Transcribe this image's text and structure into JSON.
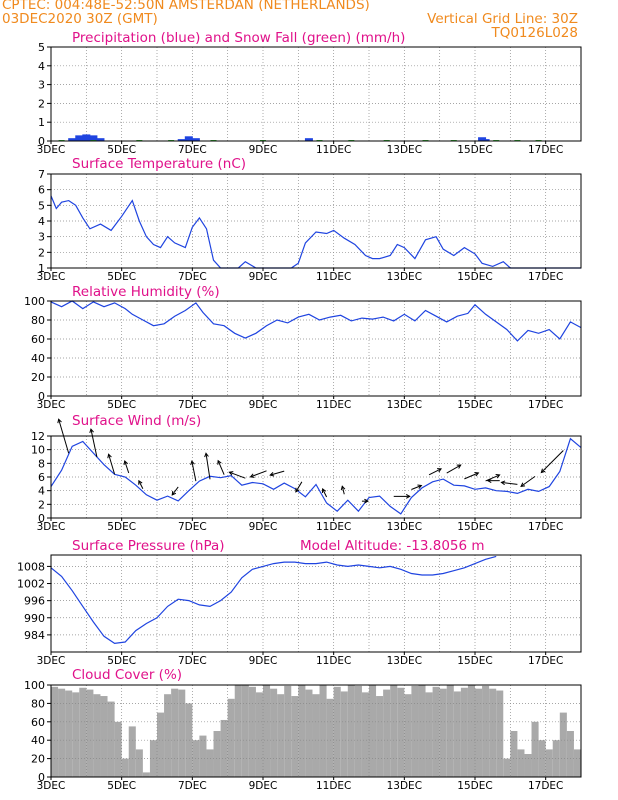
{
  "header": {
    "line1": "CPTEC:   004:48E-52:50N   AMSTERDAN (NETHERLANDS)",
    "line2": "03DEC2020 30Z (GMT)",
    "grid_note": "Vertical Grid Line: 30Z",
    "code": "TQ0126L028"
  },
  "colors": {
    "header": "#f08a1e",
    "title": "#e0118a",
    "line": "#1f44e0",
    "precip": "#1f44e0",
    "snow": "#22aa22",
    "cloud": "#a9a9a9",
    "grid": "#888888"
  },
  "chart_data": [
    {
      "id": "precip",
      "type": "bar",
      "title": "Precipitation (blue) and Snow Fall (green) (mm/h)",
      "ylim": [
        0,
        5
      ],
      "yticks": [
        0,
        1,
        2,
        3,
        4,
        5
      ],
      "xticks": [
        "3DEC",
        "5DEC",
        "7DEC",
        "9DEC",
        "11DEC",
        "13DEC",
        "15DEC",
        "17DEC"
      ],
      "x": [
        0.6,
        0.8,
        1.0,
        1.2,
        1.4,
        3.7,
        3.9,
        4.1,
        7.3,
        12.2,
        12.3
      ],
      "values": [
        0.15,
        0.3,
        0.35,
        0.3,
        0.15,
        0.1,
        0.25,
        0.15,
        0.15,
        0.2,
        0.1
      ],
      "snow_x": [
        0.3,
        1.2,
        2.5,
        3.4,
        4.6,
        6.0,
        7.6,
        8.5,
        9.5,
        10.6,
        11.4,
        12.6,
        13.2,
        13.8
      ],
      "snow_values": [
        0.05,
        0.05,
        0.05,
        0.05,
        0.05,
        0.05,
        0.05,
        0.05,
        0.05,
        0.05,
        0.05,
        0.05,
        0.05,
        0.05
      ]
    },
    {
      "id": "temp",
      "type": "line",
      "title": "Surface Temperature (nC)",
      "ylim": [
        1,
        7
      ],
      "yticks": [
        1,
        2,
        3,
        4,
        5,
        6,
        7
      ],
      "xticks": [
        "3DEC",
        "5DEC",
        "7DEC",
        "9DEC",
        "11DEC",
        "13DEC",
        "15DEC",
        "17DEC"
      ],
      "x": [
        0.0,
        0.15,
        0.3,
        0.5,
        0.7,
        0.9,
        1.1,
        1.4,
        1.7,
        2.0,
        2.3,
        2.5,
        2.7,
        2.9,
        3.1,
        3.3,
        3.5,
        3.8,
        4.0,
        4.2,
        4.4,
        4.6,
        4.8,
        5.0,
        5.3,
        5.5,
        5.8,
        6.0,
        6.2,
        6.5,
        6.8,
        7.0,
        7.2,
        7.5,
        7.8,
        8.0,
        8.3,
        8.6,
        8.9,
        9.1,
        9.3,
        9.6,
        9.8,
        10.0,
        10.3,
        10.6,
        10.9,
        11.1,
        11.4,
        11.7,
        12.0,
        12.2,
        12.5,
        12.8,
        13.0,
        13.5,
        14.0,
        14.5,
        15.0
      ],
      "values": [
        5.6,
        4.8,
        5.2,
        5.3,
        5.0,
        4.2,
        3.5,
        3.8,
        3.4,
        4.3,
        5.3,
        4.0,
        3.0,
        2.5,
        2.3,
        3.0,
        2.6,
        2.3,
        3.6,
        4.2,
        3.5,
        1.5,
        0.9,
        0.9,
        1.0,
        1.4,
        0.9,
        1.0,
        1.0,
        1.0,
        0.95,
        1.3,
        2.6,
        3.3,
        3.2,
        3.4,
        2.9,
        2.5,
        1.8,
        1.6,
        1.6,
        1.8,
        2.5,
        2.3,
        1.6,
        2.8,
        3.0,
        2.2,
        1.8,
        2.3,
        1.9,
        1.3,
        1.1,
        1.4,
        0.9,
        0.9,
        0.9,
        0.9,
        0.9
      ]
    },
    {
      "id": "rh",
      "type": "line",
      "title": "Relative Humidity (%)",
      "ylim": [
        0,
        100
      ],
      "yticks": [
        0,
        20,
        40,
        60,
        80,
        100
      ],
      "xticks": [
        "3DEC",
        "5DEC",
        "7DEC",
        "9DEC",
        "11DEC",
        "13DEC",
        "15DEC",
        "17DEC"
      ],
      "x": [
        0.0,
        0.3,
        0.6,
        0.9,
        1.2,
        1.5,
        1.8,
        2.1,
        2.3,
        2.6,
        2.9,
        3.2,
        3.5,
        3.8,
        4.1,
        4.3,
        4.6,
        4.9,
        5.2,
        5.5,
        5.8,
        6.1,
        6.4,
        6.7,
        7.0,
        7.3,
        7.6,
        7.9,
        8.2,
        8.5,
        8.8,
        9.1,
        9.4,
        9.7,
        10.0,
        10.3,
        10.6,
        10.9,
        11.2,
        11.5,
        11.8,
        12.0,
        12.3,
        12.6,
        12.9,
        13.2,
        13.5,
        13.8,
        14.1,
        14.4,
        14.7,
        15.0
      ],
      "values": [
        99,
        94,
        100,
        92,
        99,
        94,
        98,
        92,
        86,
        80,
        74,
        76,
        84,
        90,
        98,
        88,
        76,
        74,
        66,
        61,
        66,
        74,
        80,
        77,
        83,
        86,
        80,
        83,
        85,
        79,
        82,
        81,
        83,
        79,
        86,
        79,
        90,
        84,
        78,
        84,
        87,
        96,
        86,
        78,
        70,
        58,
        69,
        66,
        70,
        60,
        78,
        72
      ]
    },
    {
      "id": "wind",
      "type": "line",
      "title": "Surface Wind (m/s)",
      "ylim": [
        0,
        12
      ],
      "yticks": [
        0,
        2,
        4,
        6,
        8,
        10,
        12
      ],
      "xticks": [
        "3DEC",
        "5DEC",
        "7DEC",
        "9DEC",
        "11DEC",
        "13DEC",
        "15DEC",
        "17DEC"
      ],
      "x": [
        0.0,
        0.3,
        0.6,
        0.9,
        1.2,
        1.5,
        1.8,
        2.1,
        2.4,
        2.7,
        3.0,
        3.3,
        3.6,
        3.9,
        4.2,
        4.5,
        4.8,
        5.1,
        5.4,
        5.7,
        6.0,
        6.3,
        6.6,
        6.9,
        7.2,
        7.5,
        7.8,
        8.1,
        8.4,
        8.7,
        9.0,
        9.3,
        9.6,
        9.9,
        10.2,
        10.5,
        10.8,
        11.1,
        11.4,
        11.7,
        12.0,
        12.3,
        12.6,
        12.9,
        13.2,
        13.5,
        13.8,
        14.1,
        14.4,
        14.7,
        15.0
      ],
      "values": [
        4.6,
        7.0,
        10.5,
        11.2,
        9.5,
        7.8,
        6.4,
        6.0,
        4.8,
        3.4,
        2.6,
        3.2,
        2.5,
        4.0,
        5.4,
        6.1,
        5.9,
        6.2,
        4.8,
        5.2,
        5.0,
        4.2,
        5.1,
        4.3,
        3.1,
        4.9,
        2.2,
        1.0,
        2.6,
        1.0,
        3.0,
        3.2,
        1.7,
        0.6,
        3.0,
        4.4,
        5.3,
        5.7,
        4.8,
        4.7,
        4.2,
        4.4,
        4.0,
        3.9,
        3.6,
        4.2,
        3.9,
        4.6,
        6.8,
        11.6,
        10.3
      ],
      "arrows": [
        {
          "x": 0.5,
          "dx": -10,
          "dy": -34
        },
        {
          "x": 1.3,
          "dx": -6,
          "dy": -28
        },
        {
          "x": 1.8,
          "dx": -6,
          "dy": -20
        },
        {
          "x": 2.2,
          "dx": -4,
          "dy": -12
        },
        {
          "x": 2.6,
          "dx": -4,
          "dy": -8
        },
        {
          "x": 3.6,
          "dx": -6,
          "dy": 8
        },
        {
          "x": 4.1,
          "dx": -4,
          "dy": -20
        },
        {
          "x": 4.5,
          "dx": -4,
          "dy": -26
        },
        {
          "x": 4.9,
          "dx": -6,
          "dy": -14
        },
        {
          "x": 5.5,
          "dx": -16,
          "dy": -6
        },
        {
          "x": 6.1,
          "dx": -16,
          "dy": 6
        },
        {
          "x": 6.6,
          "dx": -14,
          "dy": 4
        },
        {
          "x": 7.1,
          "dx": -6,
          "dy": 10
        },
        {
          "x": 7.8,
          "dx": -4,
          "dy": -8
        },
        {
          "x": 8.3,
          "dx": -2,
          "dy": -8
        },
        {
          "x": 8.8,
          "dx": 6,
          "dy": 0
        },
        {
          "x": 9.7,
          "dx": 16,
          "dy": 0
        },
        {
          "x": 10.2,
          "dx": 10,
          "dy": -4
        },
        {
          "x": 10.7,
          "dx": 12,
          "dy": -6
        },
        {
          "x": 11.2,
          "dx": 14,
          "dy": -8
        },
        {
          "x": 11.7,
          "dx": 14,
          "dy": -6
        },
        {
          "x": 12.3,
          "dx": 14,
          "dy": -6
        },
        {
          "x": 12.7,
          "dx": -12,
          "dy": 0
        },
        {
          "x": 13.2,
          "dx": -16,
          "dy": -2
        },
        {
          "x": 13.7,
          "dx": -14,
          "dy": 10
        },
        {
          "x": 14.5,
          "dx": -22,
          "dy": 22
        }
      ]
    },
    {
      "id": "pressure",
      "type": "line",
      "title": "Surface Pressure (hPa)",
      "annotation": "Model Altitude: -13.8056 m",
      "ylim": [
        978,
        1012
      ],
      "yticks": [
        984,
        990,
        996,
        1002,
        1008
      ],
      "xticks": [
        "3DEC",
        "5DEC",
        "7DEC",
        "9DEC",
        "11DEC",
        "13DEC",
        "15DEC",
        "17DEC"
      ],
      "x": [
        0.0,
        0.3,
        0.6,
        0.9,
        1.2,
        1.5,
        1.8,
        2.1,
        2.4,
        2.7,
        3.0,
        3.3,
        3.6,
        3.9,
        4.2,
        4.5,
        4.8,
        5.1,
        5.4,
        5.7,
        6.0,
        6.3,
        6.6,
        6.9,
        7.2,
        7.5,
        7.8,
        8.1,
        8.4,
        8.7,
        9.0,
        9.3,
        9.6,
        9.9,
        10.2,
        10.5,
        10.8,
        11.1,
        11.4,
        11.7,
        12.0,
        12.3,
        12.6
      ],
      "values": [
        1007.5,
        1004.5,
        999.5,
        994.0,
        988.5,
        983.5,
        981.0,
        981.5,
        985.5,
        988.0,
        990.0,
        994.0,
        996.5,
        996.0,
        994.5,
        994.0,
        996.0,
        999.0,
        1004.0,
        1007.0,
        1008.0,
        1009.0,
        1009.5,
        1009.5,
        1009.0,
        1009.0,
        1009.5,
        1008.5,
        1008.0,
        1008.5,
        1008.0,
        1007.5,
        1008.0,
        1007.0,
        1005.5,
        1005.0,
        1005.0,
        1005.5,
        1006.5,
        1007.5,
        1009.0,
        1010.5,
        1011.5
      ]
    },
    {
      "id": "cloud",
      "type": "area",
      "title": "Cloud Cover (%)",
      "ylim": [
        0,
        100
      ],
      "yticks": [
        0,
        20,
        40,
        60,
        80,
        100
      ],
      "xticks": [
        "3DEC",
        "5DEC",
        "7DEC",
        "9DEC",
        "11DEC",
        "13DEC",
        "15DEC",
        "17DEC"
      ],
      "x": [
        0.0,
        0.2,
        0.4,
        0.6,
        0.8,
        1.0,
        1.2,
        1.4,
        1.6,
        1.8,
        2.0,
        2.2,
        2.4,
        2.6,
        2.8,
        3.0,
        3.2,
        3.4,
        3.6,
        3.8,
        4.0,
        4.2,
        4.4,
        4.6,
        4.8,
        5.0,
        5.2,
        5.4,
        5.6,
        5.8,
        6.0,
        6.2,
        6.4,
        6.6,
        6.8,
        7.0,
        7.2,
        7.4,
        7.6,
        7.8,
        8.0,
        8.2,
        8.4,
        8.6,
        8.8,
        9.0,
        9.2,
        9.4,
        9.6,
        9.8,
        10.0,
        10.2,
        10.4,
        10.6,
        10.8,
        11.0,
        11.2,
        11.4,
        11.6,
        11.8,
        12.0,
        12.2,
        12.4,
        12.6,
        12.8,
        13.0,
        13.2,
        13.4,
        13.6,
        13.8,
        14.0,
        14.2,
        14.4,
        14.6,
        14.8,
        15.0
      ],
      "values": [
        98,
        96,
        94,
        92,
        97,
        95,
        90,
        88,
        82,
        60,
        20,
        55,
        30,
        5,
        40,
        70,
        90,
        96,
        95,
        80,
        40,
        45,
        30,
        50,
        62,
        85,
        100,
        100,
        98,
        92,
        100,
        96,
        90,
        99,
        88,
        100,
        95,
        90,
        100,
        85,
        98,
        93,
        100,
        99,
        92,
        100,
        88,
        95,
        100,
        97,
        90,
        99,
        100,
        92,
        98,
        96,
        100,
        93,
        97,
        100,
        96,
        99,
        96,
        94,
        20,
        50,
        30,
        25,
        60,
        40,
        30,
        40,
        70,
        50,
        30,
        60
      ]
    }
  ]
}
